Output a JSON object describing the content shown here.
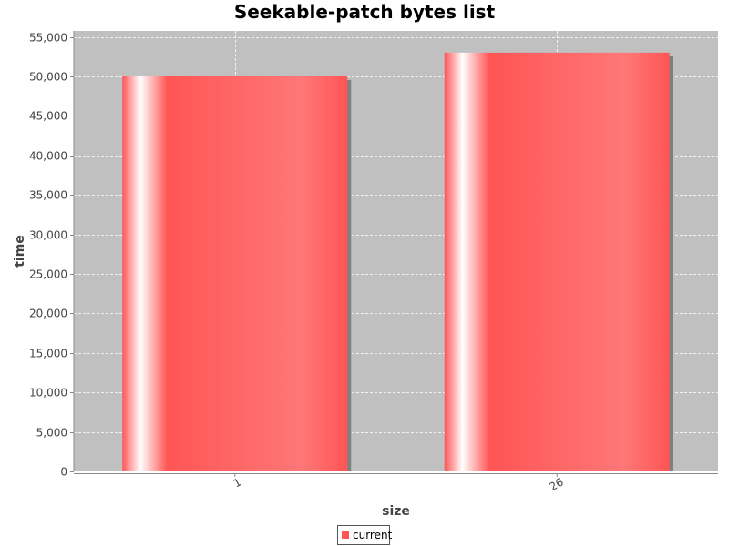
{
  "chart_data": {
    "type": "bar",
    "title": "Seekable-patch bytes list",
    "xlabel": "size",
    "ylabel": "time",
    "categories": [
      "1",
      "26"
    ],
    "series": [
      {
        "name": "current",
        "values": [
          50000,
          53000
        ],
        "color": "#ff5555"
      }
    ],
    "ylim": [
      0,
      55000
    ],
    "yticks": [
      0,
      5000,
      10000,
      15000,
      20000,
      25000,
      30000,
      35000,
      40000,
      45000,
      50000,
      55000
    ],
    "ytick_labels": [
      "0",
      "5,000",
      "10,000",
      "15,000",
      "20,000",
      "25,000",
      "30,000",
      "35,000",
      "40,000",
      "45,000",
      "50,000",
      "55,000"
    ],
    "grid": true,
    "legend": "bottom-center",
    "background_color": "#c0c0c0",
    "gridline_color": "#ffffff"
  }
}
